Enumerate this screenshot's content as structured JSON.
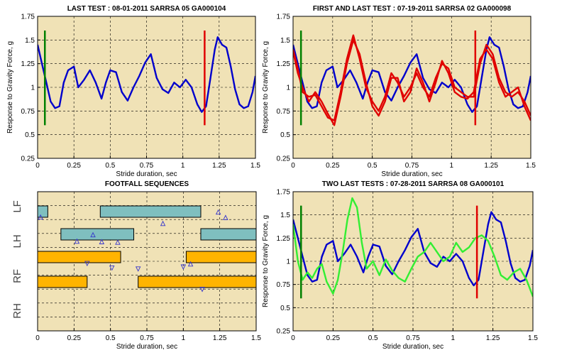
{
  "chart_data": [
    {
      "type": "line",
      "title": "LAST TEST : 08-01-2011 SARRSA 05 GA000104",
      "xlabel": "Stride duration, sec",
      "ylabel": "Response to Gravity Force, g",
      "xlim": [
        0,
        1.5
      ],
      "ylim": [
        0.25,
        1.75
      ],
      "xticks": [
        "0",
        "0.25",
        "0.5",
        "0.75",
        "1",
        "1.25",
        "1.5"
      ],
      "yticks": [
        "0.25",
        "0.5",
        "0.75",
        "1",
        "1.25",
        "1.5",
        "1.75"
      ],
      "grid": true,
      "markers": [
        {
          "x": 0.05,
          "y0": 0.6,
          "y1": 1.6,
          "color": "#008000"
        },
        {
          "x": 1.15,
          "y0": 0.6,
          "y1": 1.6,
          "color": "#e00000"
        }
      ],
      "series": [
        {
          "color": "#0000cc",
          "x": [
            0,
            0.03,
            0.06,
            0.09,
            0.12,
            0.15,
            0.18,
            0.21,
            0.25,
            0.28,
            0.32,
            0.36,
            0.4,
            0.44,
            0.47,
            0.5,
            0.54,
            0.58,
            0.62,
            0.66,
            0.7,
            0.74,
            0.78,
            0.82,
            0.86,
            0.9,
            0.94,
            0.98,
            1.02,
            1.06,
            1.1,
            1.13,
            1.16,
            1.19,
            1.22,
            1.24,
            1.27,
            1.3,
            1.33,
            1.36,
            1.39,
            1.42,
            1.45,
            1.48,
            1.5
          ],
          "y": [
            1.45,
            1.25,
            1.05,
            0.85,
            0.78,
            0.8,
            1.05,
            1.18,
            1.22,
            1.0,
            1.08,
            1.18,
            1.05,
            0.88,
            1.05,
            1.18,
            1.16,
            0.95,
            0.86,
            1.0,
            1.12,
            1.26,
            1.35,
            1.1,
            0.98,
            0.94,
            1.05,
            1.0,
            1.08,
            1.0,
            0.82,
            0.74,
            0.8,
            1.1,
            1.4,
            1.53,
            1.45,
            1.42,
            1.22,
            0.98,
            0.82,
            0.78,
            0.8,
            0.95,
            1.12
          ]
        }
      ]
    },
    {
      "type": "line",
      "title": "FIRST AND LAST TEST : 07-19-2011 SARRSA 02 GA000098",
      "xlabel": "Stride duration, sec",
      "ylabel": "Response to Gravity Force, g",
      "xlim": [
        0,
        1.5
      ],
      "ylim": [
        0.25,
        1.75
      ],
      "xticks": [
        "0",
        "0.25",
        "0.5",
        "0.75",
        "1",
        "1.25",
        "1.5"
      ],
      "yticks": [
        "0.25",
        "0.5",
        "0.75",
        "1",
        "1.25",
        "1.5",
        "1.75"
      ],
      "grid": true,
      "markers": [
        {
          "x": 0.05,
          "y0": 0.6,
          "y1": 1.6,
          "color": "#008000"
        },
        {
          "x": 1.15,
          "y0": 0.6,
          "y1": 1.6,
          "color": "#e00000"
        }
      ],
      "series": [
        {
          "color": "#0000cc",
          "x": [
            0,
            0.03,
            0.06,
            0.09,
            0.12,
            0.15,
            0.18,
            0.21,
            0.25,
            0.28,
            0.32,
            0.36,
            0.4,
            0.44,
            0.47,
            0.5,
            0.54,
            0.58,
            0.62,
            0.66,
            0.7,
            0.74,
            0.78,
            0.82,
            0.86,
            0.9,
            0.94,
            0.98,
            1.02,
            1.06,
            1.1,
            1.13,
            1.16,
            1.19,
            1.22,
            1.24,
            1.27,
            1.3,
            1.33,
            1.36,
            1.39,
            1.42,
            1.45,
            1.48,
            1.5
          ],
          "y": [
            1.45,
            1.25,
            1.05,
            0.85,
            0.78,
            0.8,
            1.05,
            1.18,
            1.22,
            1.0,
            1.08,
            1.18,
            1.05,
            0.88,
            1.05,
            1.18,
            1.16,
            0.95,
            0.86,
            1.0,
            1.12,
            1.26,
            1.35,
            1.1,
            0.98,
            0.94,
            1.05,
            1.0,
            1.08,
            1.0,
            0.82,
            0.74,
            0.8,
            1.1,
            1.4,
            1.53,
            1.45,
            1.42,
            1.22,
            0.98,
            0.82,
            0.78,
            0.8,
            0.95,
            1.12
          ]
        },
        {
          "color": "#e00000",
          "x": [
            0,
            0.03,
            0.06,
            0.1,
            0.14,
            0.18,
            0.22,
            0.26,
            0.3,
            0.34,
            0.38,
            0.42,
            0.46,
            0.5,
            0.54,
            0.58,
            0.62,
            0.66,
            0.7,
            0.74,
            0.78,
            0.82,
            0.86,
            0.9,
            0.94,
            0.98,
            1.02,
            1.06,
            1.1,
            1.14,
            1.18,
            1.22,
            1.26,
            1.3,
            1.34,
            1.38,
            1.42,
            1.46,
            1.5
          ],
          "y": [
            1.4,
            1.2,
            0.95,
            0.9,
            0.92,
            0.8,
            0.68,
            0.65,
            0.95,
            1.3,
            1.55,
            1.3,
            1.0,
            0.85,
            0.75,
            0.9,
            1.15,
            1.05,
            0.9,
            1.0,
            1.15,
            1.0,
            0.9,
            1.1,
            1.25,
            1.2,
            1.0,
            0.95,
            0.9,
            0.9,
            1.25,
            1.45,
            1.35,
            1.1,
            0.95,
            0.9,
            0.95,
            0.85,
            0.7
          ]
        },
        {
          "color": "#e00000",
          "x": [
            0,
            0.03,
            0.06,
            0.1,
            0.14,
            0.18,
            0.22,
            0.26,
            0.3,
            0.34,
            0.38,
            0.42,
            0.46,
            0.5,
            0.54,
            0.58,
            0.62,
            0.66,
            0.7,
            0.74,
            0.78,
            0.82,
            0.86,
            0.9,
            0.94,
            0.98,
            1.02,
            1.06,
            1.1,
            1.14,
            1.18,
            1.22,
            1.26,
            1.3,
            1.34,
            1.38,
            1.42,
            1.46,
            1.5
          ],
          "y": [
            1.38,
            1.15,
            1.0,
            0.85,
            0.95,
            0.85,
            0.72,
            0.6,
            0.9,
            1.25,
            1.5,
            1.35,
            1.05,
            0.8,
            0.7,
            0.85,
            1.1,
            1.1,
            0.85,
            0.95,
            1.2,
            1.05,
            0.85,
            1.05,
            1.28,
            1.15,
            0.95,
            0.9,
            0.88,
            0.95,
            1.3,
            1.4,
            1.3,
            1.05,
            0.9,
            0.95,
            1.0,
            0.8,
            0.65
          ]
        }
      ]
    },
    {
      "type": "timeline",
      "title": "FOOTFALL SEQUENCES",
      "xlabel": "Stride duration, sec",
      "xlim": [
        0,
        1.5
      ],
      "xticks": [
        "0",
        "0.25",
        "0.5",
        "0.75",
        "1",
        "1.25",
        "1.5"
      ],
      "grid": true,
      "rows": [
        "LF",
        "LH",
        "RF",
        "RH"
      ],
      "bars": [
        {
          "row": "LF",
          "start": 0.0,
          "end": 0.07,
          "color": "#7fbfbf"
        },
        {
          "row": "LF",
          "start": 0.43,
          "end": 1.12,
          "color": "#7fbfbf"
        },
        {
          "row": "LH",
          "start": 0.16,
          "end": 0.66,
          "color": "#7fbfbf"
        },
        {
          "row": "LH",
          "start": 1.12,
          "end": 1.5,
          "color": "#7fbfbf"
        },
        {
          "row": "RF",
          "start": 0.0,
          "end": 0.57,
          "color": "#ffb400"
        },
        {
          "row": "RF",
          "start": 1.02,
          "end": 1.5,
          "color": "#ffb400"
        },
        {
          "row": "RH",
          "start": 0.0,
          "end": 0.34,
          "color": "#ffb400"
        },
        {
          "row": "RH",
          "start": 0.69,
          "end": 1.5,
          "color": "#ffb400"
        }
      ],
      "triangles": [
        {
          "x": 0.02,
          "row": "LF",
          "offset": 0.55,
          "dir": "up"
        },
        {
          "x": 1.24,
          "row": "LF",
          "offset": 0.05,
          "dir": "up"
        },
        {
          "x": 1.29,
          "row": "LF",
          "offset": 0.6,
          "dir": "up"
        },
        {
          "x": 0.86,
          "row": "LF",
          "offset": 1.2,
          "dir": "up"
        },
        {
          "x": 0.27,
          "row": "LH",
          "offset": 0.7,
          "dir": "up"
        },
        {
          "x": 0.44,
          "row": "LH",
          "offset": 0.75,
          "dir": "up"
        },
        {
          "x": 0.55,
          "row": "LH",
          "offset": 0.8,
          "dir": "up"
        },
        {
          "x": 0.38,
          "row": "LH",
          "offset": 0.05,
          "dir": "up"
        },
        {
          "x": 0.34,
          "row": "RF",
          "offset": 0.65,
          "dir": "down"
        },
        {
          "x": 0.51,
          "row": "RF",
          "offset": 1.1,
          "dir": "down"
        },
        {
          "x": 0.69,
          "row": "RF",
          "offset": 1.2,
          "dir": "down"
        },
        {
          "x": 1.0,
          "row": "RF",
          "offset": 1.0,
          "dir": "down"
        },
        {
          "x": 1.05,
          "row": "RF",
          "offset": 0.7,
          "dir": "up"
        },
        {
          "x": 1.13,
          "row": "RH",
          "offset": 0.75,
          "dir": "down"
        }
      ]
    },
    {
      "type": "line",
      "title": "TWO LAST TESTS : 07-28-2011 SARRSA 08 GA000101",
      "xlabel": "Stride duration, sec",
      "ylabel": "Response to Gravity Force, g",
      "xlim": [
        0,
        1.5
      ],
      "ylim": [
        0.25,
        1.75
      ],
      "xticks": [
        "0",
        "0.25",
        "0.5",
        "0.75",
        "1",
        "1.25",
        "1.5"
      ],
      "yticks": [
        "0.25",
        "0.5",
        "0.75",
        "1",
        "1.25",
        "1.5",
        "1.75"
      ],
      "grid": true,
      "markers": [
        {
          "x": 0.05,
          "y0": 0.6,
          "y1": 1.6,
          "color": "#008000"
        },
        {
          "x": 1.15,
          "y0": 0.6,
          "y1": 1.6,
          "color": "#e00000"
        }
      ],
      "series": [
        {
          "color": "#0000cc",
          "x": [
            0,
            0.03,
            0.06,
            0.09,
            0.12,
            0.15,
            0.18,
            0.21,
            0.25,
            0.28,
            0.32,
            0.36,
            0.4,
            0.44,
            0.47,
            0.5,
            0.54,
            0.58,
            0.62,
            0.66,
            0.7,
            0.74,
            0.78,
            0.82,
            0.86,
            0.9,
            0.94,
            0.98,
            1.02,
            1.06,
            1.1,
            1.13,
            1.16,
            1.19,
            1.22,
            1.24,
            1.27,
            1.3,
            1.33,
            1.36,
            1.39,
            1.42,
            1.45,
            1.48,
            1.5
          ],
          "y": [
            1.45,
            1.25,
            1.05,
            0.85,
            0.78,
            0.8,
            1.05,
            1.18,
            1.22,
            1.0,
            1.08,
            1.18,
            1.05,
            0.88,
            1.05,
            1.18,
            1.16,
            0.95,
            0.86,
            1.0,
            1.12,
            1.26,
            1.35,
            1.1,
            0.98,
            0.94,
            1.05,
            1.0,
            1.08,
            1.0,
            0.82,
            0.74,
            0.8,
            1.1,
            1.4,
            1.53,
            1.45,
            1.42,
            1.22,
            0.98,
            0.82,
            0.78,
            0.8,
            0.95,
            1.12
          ]
        },
        {
          "color": "#33ee33",
          "x": [
            0,
            0.03,
            0.06,
            0.09,
            0.12,
            0.15,
            0.18,
            0.21,
            0.25,
            0.28,
            0.31,
            0.34,
            0.37,
            0.4,
            0.43,
            0.46,
            0.5,
            0.54,
            0.58,
            0.62,
            0.66,
            0.7,
            0.74,
            0.78,
            0.82,
            0.86,
            0.9,
            0.94,
            0.98,
            1.02,
            1.06,
            1.1,
            1.14,
            1.18,
            1.22,
            1.26,
            1.3,
            1.34,
            1.38,
            1.42,
            1.46,
            1.5
          ],
          "y": [
            1.4,
            1.0,
            0.8,
            0.88,
            0.82,
            0.92,
            0.97,
            0.78,
            0.65,
            0.8,
            1.1,
            1.45,
            1.68,
            1.58,
            1.2,
            0.92,
            1.0,
            0.85,
            1.02,
            0.9,
            0.82,
            0.78,
            0.92,
            1.05,
            1.1,
            1.2,
            1.1,
            1.0,
            1.05,
            1.2,
            1.1,
            1.15,
            1.25,
            1.28,
            1.22,
            1.05,
            0.85,
            0.8,
            0.88,
            0.92,
            0.8,
            0.62
          ]
        }
      ]
    }
  ]
}
